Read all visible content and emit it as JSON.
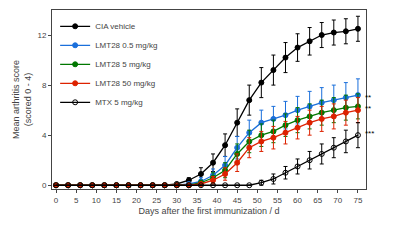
{
  "chart_data": {
    "type": "line",
    "xlabel": "Days after the first immunization / d",
    "ylabel": "Mean arthritis score\n(scored 0 - 4)",
    "xlim": [
      -1,
      77
    ],
    "ylim": [
      -0.3,
      14
    ],
    "xticks": [
      0,
      5,
      10,
      15,
      20,
      25,
      30,
      35,
      40,
      45,
      50,
      55,
      60,
      65,
      70,
      75
    ],
    "yticks": [
      0,
      4,
      8,
      12
    ],
    "grid": false,
    "legend": "upper left",
    "x": [
      0,
      3,
      6,
      9,
      12,
      15,
      18,
      21,
      24,
      27,
      30,
      33,
      36,
      39,
      42,
      45,
      48,
      51,
      54,
      57,
      60,
      63,
      66,
      69,
      72,
      75
    ],
    "series": [
      {
        "name": "CIA vehicle",
        "color": "#000000",
        "marker": "circle",
        "values": [
          0,
          0,
          0,
          0,
          0,
          0,
          0,
          0,
          0,
          0,
          0.1,
          0.4,
          0.9,
          1.8,
          3.2,
          5.0,
          6.8,
          8.2,
          9.2,
          10.2,
          11.0,
          11.5,
          12.0,
          12.2,
          12.3,
          12.5
        ],
        "errors": [
          0,
          0,
          0,
          0,
          0,
          0,
          0,
          0,
          0,
          0,
          0.1,
          0.2,
          0.5,
          0.7,
          0.9,
          1.1,
          1.2,
          1.2,
          1.2,
          1.2,
          1.1,
          1.1,
          1.0,
          1.0,
          1.0,
          1.0
        ]
      },
      {
        "name": "LMT28 0.5 mg/kg",
        "color": "#1a6fdb",
        "marker": "circle",
        "values": [
          0,
          0,
          0,
          0,
          0,
          0,
          0,
          0,
          0,
          0,
          0,
          0.1,
          0.3,
          0.8,
          1.6,
          3.0,
          4.2,
          5.0,
          5.3,
          5.6,
          6.0,
          6.3,
          6.6,
          6.8,
          7.0,
          7.2
        ],
        "errors": [
          0,
          0,
          0,
          0,
          0,
          0,
          0,
          0,
          0,
          0,
          0,
          0.1,
          0.3,
          0.5,
          0.7,
          0.9,
          1.0,
          1.0,
          1.0,
          1.1,
          1.1,
          1.2,
          1.2,
          1.2,
          1.2,
          1.3
        ]
      },
      {
        "name": "LMT28 5 mg/kg",
        "color": "#007700",
        "marker": "circle",
        "values": [
          0,
          0,
          0,
          0,
          0,
          0,
          0,
          0,
          0,
          0,
          0,
          0,
          0.2,
          0.6,
          1.2,
          2.5,
          3.5,
          4.0,
          4.3,
          4.8,
          5.2,
          5.5,
          5.8,
          6.0,
          6.2,
          6.3
        ],
        "errors": [
          0,
          0,
          0,
          0,
          0,
          0,
          0,
          0,
          0,
          0,
          0,
          0,
          0.2,
          0.4,
          0.6,
          0.8,
          0.9,
          0.9,
          0.9,
          0.9,
          1.0,
          1.0,
          1.0,
          1.0,
          1.0,
          1.0
        ]
      },
      {
        "name": "LMT28 50 mg/kg",
        "color": "#dd2200",
        "marker": "circle",
        "values": [
          0,
          0,
          0,
          0,
          0,
          0,
          0,
          0,
          0,
          0,
          0,
          0,
          0.1,
          0.4,
          0.9,
          1.8,
          3.0,
          3.5,
          3.8,
          4.2,
          4.6,
          5.0,
          5.3,
          5.5,
          5.8,
          6.0
        ],
        "errors": [
          0,
          0,
          0,
          0,
          0,
          0,
          0,
          0,
          0,
          0,
          0,
          0,
          0.1,
          0.3,
          0.5,
          0.7,
          0.8,
          0.8,
          0.9,
          0.9,
          0.9,
          1.0,
          1.0,
          1.0,
          1.0,
          1.0
        ]
      },
      {
        "name": "MTX 5 mg/kg",
        "color": "#000000",
        "marker": "circle-open",
        "values": [
          0,
          0,
          0,
          0,
          0,
          0,
          0,
          0,
          0,
          0,
          0,
          0,
          0,
          0,
          0,
          0,
          0,
          0.2,
          0.5,
          1.0,
          1.5,
          2.0,
          2.5,
          3.0,
          3.5,
          4.0
        ],
        "errors": [
          0,
          0,
          0,
          0,
          0,
          0,
          0,
          0,
          0,
          0,
          0,
          0,
          0,
          0,
          0,
          0,
          0,
          0.2,
          0.4,
          0.5,
          0.6,
          0.7,
          0.8,
          0.8,
          0.9,
          1.0
        ]
      }
    ],
    "annotations": [
      {
        "text": "**",
        "x": 76.2,
        "y": 7.0
      },
      {
        "text": "**",
        "x": 76.2,
        "y": 6.1
      },
      {
        "text": "***",
        "x": 76.2,
        "y": 4.1
      }
    ]
  }
}
